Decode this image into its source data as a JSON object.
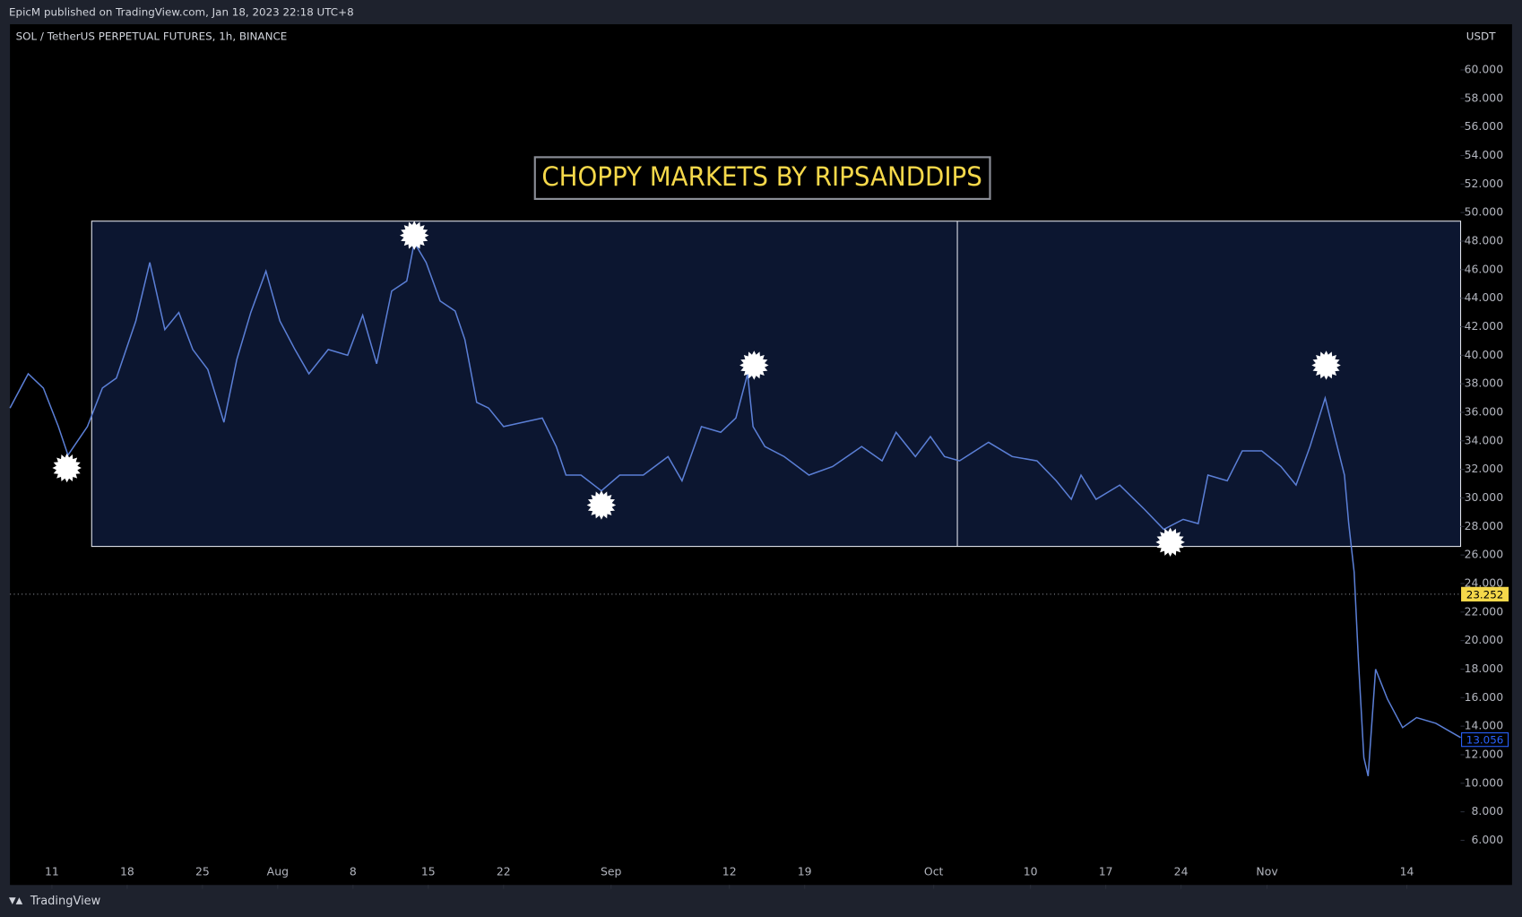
{
  "header": "EpicM published on TradingView.com, Jan 18, 2023 22:18 UTC+8",
  "footer": "TradingView",
  "chart_data": {
    "type": "line",
    "symbol": "SOL / TetherUS PERPETUAL FUTURES, 1h, BINANCE",
    "currency": "USDT",
    "title": "CHOPPY MARKETS BY RIPSANDDIPS",
    "color": "#5b7fd6",
    "x": [
      7.1,
      8.8,
      10.2,
      11.6,
      12.5,
      14.3,
      15.7,
      17,
      18.8,
      20.1,
      21.5,
      22.8,
      24.1,
      25.5,
      27,
      28.2,
      29.5,
      30.9,
      32.2,
      33.6,
      34.9,
      36.7,
      38.5,
      39.9,
      41.2,
      42.6,
      44,
      44.7,
      45.8,
      47.1,
      48.5,
      49.4,
      50.5,
      51.6,
      53,
      54.8,
      56.6,
      57.9,
      58.8,
      60.2,
      62.1,
      63.8,
      66,
      68.3,
      69.6,
      71.4,
      73.2,
      74.6,
      75.7,
      76.2,
      77.3,
      79.1,
      81.4,
      83.6,
      86.3,
      88.2,
      89.5,
      91.3,
      92.7,
      94,
      95.4,
      98.1,
      100.3,
      102.6,
      104.4,
      105.8,
      106.7,
      108.1,
      110.3,
      112.6,
      114.4,
      116.2,
      117.6,
      118.5,
      120.3,
      121.7,
      123.5,
      125.3,
      126.7,
      128,
      129.4,
      130.3,
      131.2,
      131.6,
      132.1,
      132.5,
      133,
      133.4,
      134.1,
      135.2,
      136.6,
      137.9,
      139.7,
      142
    ],
    "values": [
      36.3,
      38.7,
      37.7,
      35,
      33,
      35,
      37.7,
      38.4,
      42.4,
      46.5,
      41.8,
      43,
      40.4,
      39,
      35.3,
      39.7,
      43,
      45.9,
      42.4,
      40.4,
      38.7,
      40.4,
      40,
      42.8,
      39.4,
      44.5,
      45.2,
      47.9,
      46.5,
      43.8,
      43.1,
      41.1,
      36.7,
      36.3,
      35,
      35.3,
      35.6,
      33.6,
      31.6,
      31.6,
      30.5,
      31.6,
      31.6,
      32.9,
      31.2,
      35,
      34.6,
      35.6,
      38.7,
      35,
      33.6,
      32.9,
      31.6,
      32.2,
      33.6,
      32.6,
      34.6,
      32.9,
      34.3,
      32.9,
      32.6,
      33.9,
      32.9,
      32.6,
      31.2,
      29.9,
      31.6,
      29.9,
      30.9,
      29.2,
      27.8,
      28.5,
      28.2,
      31.6,
      31.2,
      33.3,
      33.3,
      32.2,
      30.9,
      33.6,
      37,
      34.3,
      31.6,
      28.2,
      24.8,
      18.6,
      11.8,
      10.5,
      18,
      15.9,
      13.9,
      14.6,
      14.2,
      13.2
    ],
    "xlim": [
      7.1,
      142
    ],
    "ylim": [
      2.87,
      63.2
    ],
    "xticks": [
      {
        "value": 11,
        "label": "11"
      },
      {
        "value": 18,
        "label": "18"
      },
      {
        "value": 25,
        "label": "25"
      },
      {
        "value": 32,
        "label": "Aug"
      },
      {
        "value": 39,
        "label": "8"
      },
      {
        "value": 46,
        "label": "15"
      },
      {
        "value": 53,
        "label": "22"
      },
      {
        "value": 63,
        "label": "Sep"
      },
      {
        "value": 74,
        "label": "12"
      },
      {
        "value": 81,
        "label": "19"
      },
      {
        "value": 93,
        "label": "Oct"
      },
      {
        "value": 102,
        "label": "10"
      },
      {
        "value": 109,
        "label": "17"
      },
      {
        "value": 116,
        "label": "24"
      },
      {
        "value": 124,
        "label": "Nov"
      },
      {
        "value": 137,
        "label": "14"
      }
    ],
    "yticks": [
      {
        "value": 6,
        "label": "6.000"
      },
      {
        "value": 8,
        "label": "8.000"
      },
      {
        "value": 10,
        "label": "10.000"
      },
      {
        "value": 12,
        "label": "12.000"
      },
      {
        "value": 14,
        "label": "14.000"
      },
      {
        "value": 16,
        "label": "16.000"
      },
      {
        "value": 18,
        "label": "18.000"
      },
      {
        "value": 20,
        "label": "20.000"
      },
      {
        "value": 22,
        "label": "22.000"
      },
      {
        "value": 24,
        "label": "24.000"
      },
      {
        "value": 26,
        "label": "26.000"
      },
      {
        "value": 28,
        "label": "28.000"
      },
      {
        "value": 30,
        "label": "30.000"
      },
      {
        "value": 32,
        "label": "32.000"
      },
      {
        "value": 34,
        "label": "34.000"
      },
      {
        "value": 36,
        "label": "36.000"
      },
      {
        "value": 38,
        "label": "38.000"
      },
      {
        "value": 40,
        "label": "40.000"
      },
      {
        "value": 42,
        "label": "42.000"
      },
      {
        "value": 44,
        "label": "44.000"
      },
      {
        "value": 46,
        "label": "46.000"
      },
      {
        "value": 48,
        "label": "48.000"
      },
      {
        "value": 50,
        "label": "50.000"
      },
      {
        "value": 52,
        "label": "52.000"
      },
      {
        "value": 54,
        "label": "54.000"
      },
      {
        "value": 56,
        "label": "56.000"
      },
      {
        "value": 58,
        "label": "58.000"
      },
      {
        "value": 60,
        "label": "60.000"
      }
    ],
    "price_lines": [
      {
        "value": 23.252,
        "color": "#f5d84a",
        "dotted": true
      },
      {
        "value": 13.056,
        "color": "#2962ff",
        "dotted": false
      }
    ],
    "range_box": {
      "x": [
        14.7,
        142
      ],
      "y": [
        26.6,
        49.4
      ],
      "color": "#0c1630"
    },
    "divider_x": 95.2,
    "markers": {
      "x": [
        12.4,
        44.7,
        62.1,
        76.3,
        115,
        129.5
      ],
      "y": [
        32.1,
        48.4,
        29.5,
        39.3,
        26.9,
        39.3
      ]
    }
  }
}
